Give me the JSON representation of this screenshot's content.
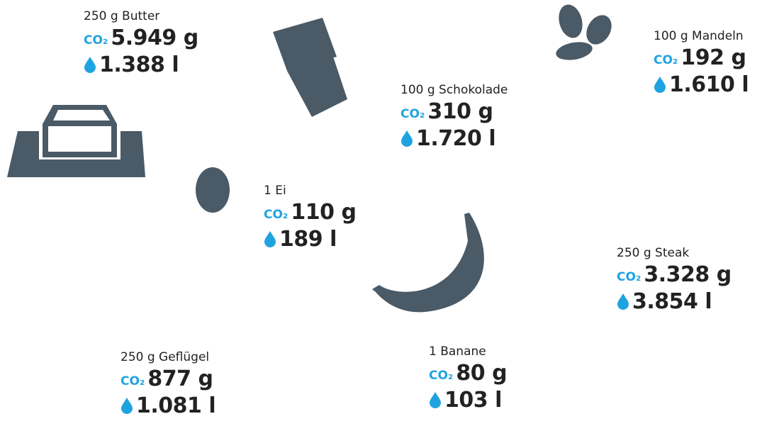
{
  "co2_label": "CO₂",
  "items": [
    {
      "label": "250 g Butter",
      "co2": "5.949 g",
      "water": "1.388 l"
    },
    {
      "label": "100 g Schokolade",
      "co2": "310 g",
      "water": "1.720 l"
    },
    {
      "label": "100 g Mandeln",
      "co2": "192 g",
      "water": "1.610 l"
    },
    {
      "label": "1 Ei",
      "co2": "110 g",
      "water": "189 l"
    },
    {
      "label": "250 g Steak",
      "co2": "3.328 g",
      "water": "3.854 l"
    },
    {
      "label": "250 g Geflügel",
      "co2": "877 g",
      "water": "1.081 l"
    },
    {
      "label": "1 Banane",
      "co2": "80 g",
      "water": "103 l"
    }
  ]
}
